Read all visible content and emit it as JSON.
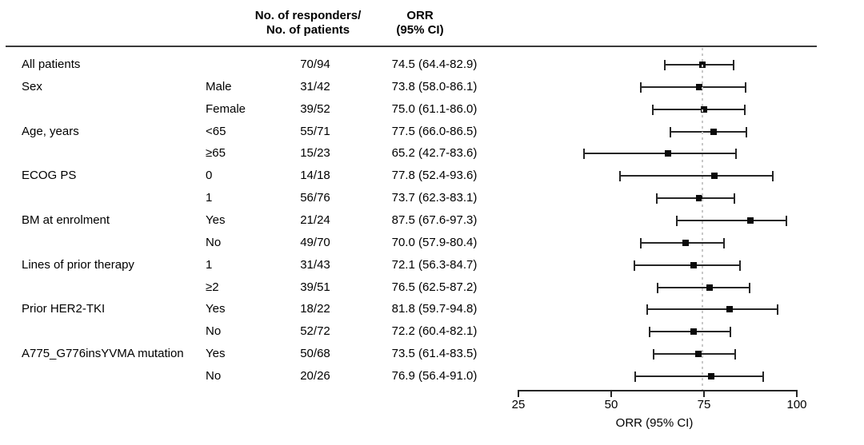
{
  "header": {
    "responders_line1": "No. of responders/",
    "responders_line2": "No. of patients",
    "orr_line1": "ORR",
    "orr_line2": "(95% CI)"
  },
  "axis": {
    "label": "ORR (95% CI)",
    "ticks": [
      25,
      50,
      75,
      100
    ],
    "min": 25,
    "max": 100,
    "reference_line": 74.5
  },
  "colors": {
    "text": "#000000",
    "line": "#262626",
    "reference_line": "#c8c8c8"
  },
  "chart_data": {
    "type": "scatter",
    "subtype": "forest-plot",
    "title": "",
    "xlabel": "ORR (95% CI)",
    "xlim": [
      25,
      100
    ],
    "reference_line": 74.5,
    "grid": false,
    "columns": [
      "Group",
      "Subgroup",
      "No. of responders/No. of patients",
      "ORR (95% CI)"
    ],
    "rows": [
      {
        "group": "All patients",
        "subgroup": "",
        "n": "70/94",
        "orr": "74.5 (64.4-82.9)",
        "est": 74.5,
        "lo": 64.4,
        "hi": 82.9
      },
      {
        "group": "Sex",
        "subgroup": "Male",
        "n": "31/42",
        "orr": "73.8 (58.0-86.1)",
        "est": 73.8,
        "lo": 58.0,
        "hi": 86.1
      },
      {
        "group": "",
        "subgroup": "Female",
        "n": "39/52",
        "orr": "75.0 (61.1-86.0)",
        "est": 75.0,
        "lo": 61.1,
        "hi": 86.0
      },
      {
        "group": "Age, years",
        "subgroup": "<65",
        "n": "55/71",
        "orr": "77.5 (66.0-86.5)",
        "est": 77.5,
        "lo": 66.0,
        "hi": 86.5
      },
      {
        "group": "",
        "subgroup": "≥65",
        "n": "15/23",
        "orr": "65.2 (42.7-83.6)",
        "est": 65.2,
        "lo": 42.7,
        "hi": 83.6
      },
      {
        "group": "ECOG PS",
        "subgroup": "0",
        "n": "14/18",
        "orr": "77.8 (52.4-93.6)",
        "est": 77.8,
        "lo": 52.4,
        "hi": 93.6
      },
      {
        "group": "",
        "subgroup": "1",
        "n": "56/76",
        "orr": "73.7 (62.3-83.1)",
        "est": 73.7,
        "lo": 62.3,
        "hi": 83.1
      },
      {
        "group": "BM at enrolment",
        "subgroup": "Yes",
        "n": "21/24",
        "orr": "87.5 (67.6-97.3)",
        "est": 87.5,
        "lo": 67.6,
        "hi": 97.3
      },
      {
        "group": "",
        "subgroup": "No",
        "n": "49/70",
        "orr": "70.0 (57.9-80.4)",
        "est": 70.0,
        "lo": 57.9,
        "hi": 80.4
      },
      {
        "group": "Lines of prior therapy",
        "subgroup": "1",
        "n": "31/43",
        "orr": "72.1 (56.3-84.7)",
        "est": 72.1,
        "lo": 56.3,
        "hi": 84.7
      },
      {
        "group": "",
        "subgroup": "≥2",
        "n": "39/51",
        "orr": "76.5 (62.5-87.2)",
        "est": 76.5,
        "lo": 62.5,
        "hi": 87.2
      },
      {
        "group": "Prior HER2-TKI",
        "subgroup": "Yes",
        "n": "18/22",
        "orr": "81.8 (59.7-94.8)",
        "est": 81.8,
        "lo": 59.7,
        "hi": 94.8
      },
      {
        "group": "",
        "subgroup": "No",
        "n": "52/72",
        "orr": "72.2 (60.4-82.1)",
        "est": 72.2,
        "lo": 60.4,
        "hi": 82.1
      },
      {
        "group": "A775_G776insYVMA mutation",
        "subgroup": "Yes",
        "n": "50/68",
        "orr": "73.5 (61.4-83.5)",
        "est": 73.5,
        "lo": 61.4,
        "hi": 83.5
      },
      {
        "group": "",
        "subgroup": "No",
        "n": "20/26",
        "orr": "76.9 (56.4-91.0)",
        "est": 76.9,
        "lo": 56.4,
        "hi": 91.0
      }
    ]
  }
}
